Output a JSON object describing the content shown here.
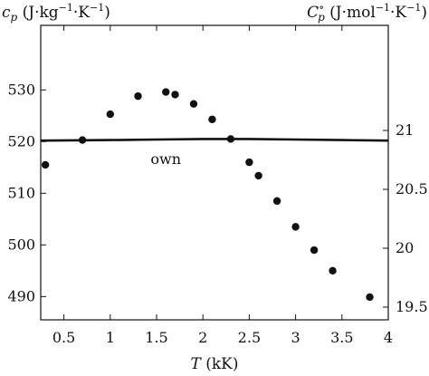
{
  "chart_data": {
    "type": "scatter",
    "title": "",
    "xlabel": "T (kK)",
    "ylabel_left": "c_p (J·kg⁻¹·K⁻¹)",
    "ylabel_right": "C_p° (J·mol⁻¹·K⁻¹)",
    "xlim": [
      0.25,
      4.0
    ],
    "ylim": [
      485.5,
      542.5
    ],
    "ylim_right": [
      19.5,
      21.4
    ],
    "x_ticks": [
      0.5,
      1,
      1.5,
      2,
      2.5,
      3,
      3.5,
      4
    ],
    "x_tick_labels": [
      "0.5",
      "1",
      "1.5",
      "2",
      "2.5",
      "3",
      "3.5",
      "4"
    ],
    "y_ticks": [
      490,
      500,
      510,
      520,
      530
    ],
    "y_tick_labels": [
      "490",
      "500",
      "510",
      "520",
      "530"
    ],
    "y_right_ticks": [
      19.5,
      20,
      20.5,
      21
    ],
    "y_right_tick_labels": [
      "19.5",
      "20",
      "20.5",
      "21"
    ],
    "grid": false,
    "legend": "none",
    "series": [
      {
        "kind": "scatter",
        "color": "#111111",
        "x": [
          0.3,
          0.7,
          1.0,
          1.3,
          1.6,
          1.7,
          1.9,
          2.1,
          2.3,
          2.5,
          2.6,
          2.8,
          3.0,
          3.2,
          3.4,
          3.8
        ],
        "y": [
          515.5,
          520.3,
          525.3,
          528.8,
          529.6,
          529.1,
          527.3,
          524.3,
          520.5,
          516.0,
          513.4,
          508.5,
          503.5,
          499.0,
          495.0,
          489.9
        ]
      },
      {
        "name": "own",
        "kind": "line",
        "color": "#111111",
        "x": [
          0.25,
          1.0,
          1.5,
          2.0,
          2.5,
          3.0,
          3.5,
          4.0
        ],
        "y": [
          520.2,
          520.3,
          520.4,
          520.5,
          520.5,
          520.4,
          520.3,
          520.2
        ]
      }
    ],
    "annotations": [
      {
        "text": "own",
        "x": 1.6,
        "y": 519.0
      }
    ]
  }
}
